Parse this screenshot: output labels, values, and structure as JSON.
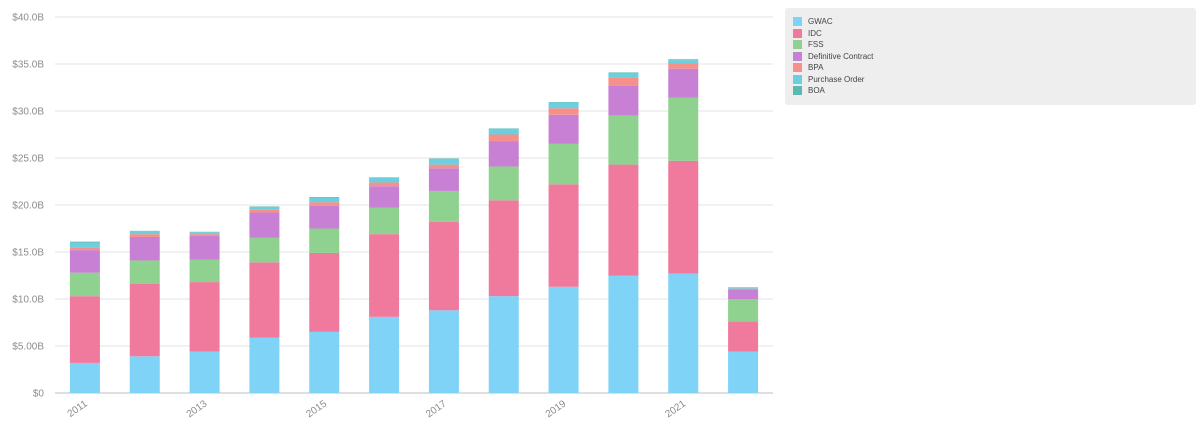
{
  "chart_data": {
    "type": "bar",
    "stacked": true,
    "categories": [
      "2011",
      "2012",
      "2013",
      "2014",
      "2015",
      "2016",
      "2017",
      "2018",
      "2019",
      "2020",
      "2021",
      "2022"
    ],
    "x_tick_labels": [
      "2011",
      "",
      "2013",
      "",
      "2015",
      "",
      "2017",
      "",
      "2019",
      "",
      "2021",
      ""
    ],
    "y_ticks": [
      "$0",
      "$5.00B",
      "$10.0B",
      "$15.0B",
      "$20.0B",
      "$25.0B",
      "$30.0B",
      "$35.0B",
      "$40.0B"
    ],
    "ylim": [
      0,
      40
    ],
    "grid": true,
    "legend_position": "top-right",
    "series": [
      {
        "name": "GWAC",
        "color": "#7fd3f7",
        "values": [
          3.2,
          3.9,
          4.4,
          5.9,
          6.5,
          8.1,
          8.8,
          10.3,
          11.3,
          12.5,
          12.7,
          4.4
        ]
      },
      {
        "name": "IDC",
        "color": "#f07a9e",
        "values": [
          7.1,
          7.7,
          7.4,
          8.0,
          8.4,
          8.8,
          9.4,
          10.2,
          10.9,
          11.8,
          12.0,
          3.2
        ]
      },
      {
        "name": "FSS",
        "color": "#8fd18e",
        "values": [
          2.5,
          2.5,
          2.4,
          2.6,
          2.6,
          2.8,
          3.3,
          3.6,
          4.3,
          5.2,
          6.7,
          2.4
        ]
      },
      {
        "name": "Definitive Contract",
        "color": "#c880d4",
        "values": [
          2.4,
          2.5,
          2.5,
          2.7,
          2.4,
          2.3,
          2.4,
          2.7,
          3.1,
          3.2,
          3.1,
          1.0
        ]
      },
      {
        "name": "BPA",
        "color": "#f5908a",
        "values": [
          0.3,
          0.3,
          0.2,
          0.3,
          0.4,
          0.4,
          0.4,
          0.7,
          0.7,
          0.9,
          0.6,
          0.1
        ]
      },
      {
        "name": "Purchase Order",
        "color": "#6ad0df",
        "values": [
          0.5,
          0.3,
          0.2,
          0.3,
          0.5,
          0.5,
          0.6,
          0.6,
          0.6,
          0.4,
          0.3,
          0.1
        ]
      },
      {
        "name": "BOA",
        "color": "#5cb8b2",
        "values": [
          0.1,
          0.05,
          0.05,
          0.05,
          0.05,
          0.05,
          0.05,
          0.05,
          0.05,
          0.1,
          0.1,
          0.05
        ]
      }
    ]
  }
}
